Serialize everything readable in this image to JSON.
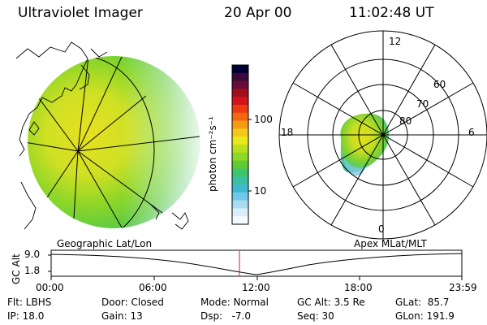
{
  "header": {
    "instrument": "Ultraviolet Imager",
    "date": "20 Apr 00",
    "time": "11:02:48 UT"
  },
  "colorbar": {
    "unit_label": "photon cm⁻²s⁻¹",
    "tick_labels": [
      "100",
      "10"
    ],
    "colors": [
      "#000033",
      "#3a0a3a",
      "#6a0a3a",
      "#a0101a",
      "#d0141a",
      "#ee3a10",
      "#f26810",
      "#f49a14",
      "#f4c818",
      "#e8e81c",
      "#b8e020",
      "#8cd828",
      "#5fcc34",
      "#40c46a",
      "#3ac0a0",
      "#40b8d0",
      "#70c8e8",
      "#a8dcf0",
      "#d8eef8",
      "#f4fafd"
    ]
  },
  "panels": {
    "geographic_label": "Geographic Lat/Lon",
    "apex_label": "Apex MLat/MLT"
  },
  "polar": {
    "mlt_labels": {
      "top": "12",
      "right": "6",
      "bottom": "0",
      "left": "18"
    },
    "lat_labels": [
      "60",
      "70",
      "80"
    ]
  },
  "altitude_plot": {
    "ylabel": "GC Alt",
    "y_ticks": [
      "9.0",
      "1.8"
    ],
    "x_ticks": [
      "00:00",
      "06:00",
      "12:00",
      "18:00",
      "23:59"
    ],
    "current_time_marker": "11:03"
  },
  "status": {
    "flt": "Flt: LBHS",
    "ip": "IP: 18.0",
    "door": "Door: Closed",
    "gain": "Gain: 13",
    "mode": "Mode: Normal",
    "dsp": "Dsp:   -7.0",
    "gc_alt": "GC Alt: 3.5 Re",
    "seq": "Seq: 30",
    "glat": "GLat:  85.7",
    "glon": "GLon: 191.9"
  }
}
